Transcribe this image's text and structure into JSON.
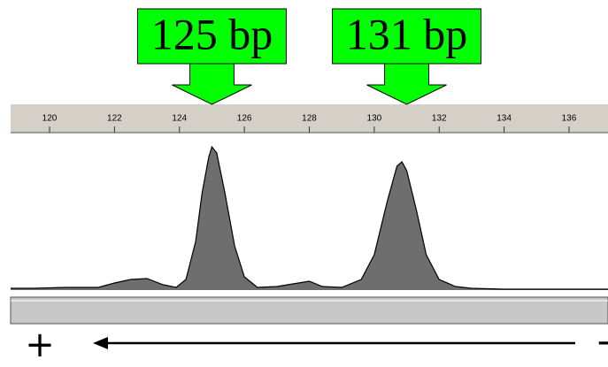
{
  "chart_data": {
    "type": "area",
    "x": [
      118.8,
      119.5,
      120.5,
      121.5,
      122.0,
      122.5,
      123.0,
      123.5,
      123.9,
      124.2,
      124.5,
      124.7,
      124.9,
      125.0,
      125.15,
      125.4,
      125.7,
      126.0,
      126.4,
      127.0,
      127.5,
      128.0,
      128.4,
      129.0,
      129.6,
      130.0,
      130.4,
      130.7,
      130.85,
      131.0,
      131.3,
      131.6,
      132.0,
      132.5,
      133.0,
      134.0,
      136.0,
      137.2
    ],
    "values": [
      2,
      2,
      3,
      3,
      8,
      12,
      13,
      6,
      3,
      12,
      55,
      110,
      150,
      162,
      155,
      110,
      50,
      15,
      3,
      4,
      7,
      10,
      4,
      3,
      12,
      40,
      100,
      140,
      145,
      135,
      90,
      40,
      12,
      4,
      2,
      1,
      1,
      1
    ],
    "color": "#6e6e6e",
    "xlim": [
      118.8,
      137.2
    ],
    "xticks": [
      120,
      122,
      124,
      126,
      128,
      130,
      132,
      134,
      136
    ],
    "ylim": [
      0,
      175
    ],
    "annotations": [
      {
        "text": "125 bp",
        "x": 125
      },
      {
        "text": "131 bp",
        "x": 131
      }
    ],
    "left_label": "+",
    "right_label": "-"
  }
}
